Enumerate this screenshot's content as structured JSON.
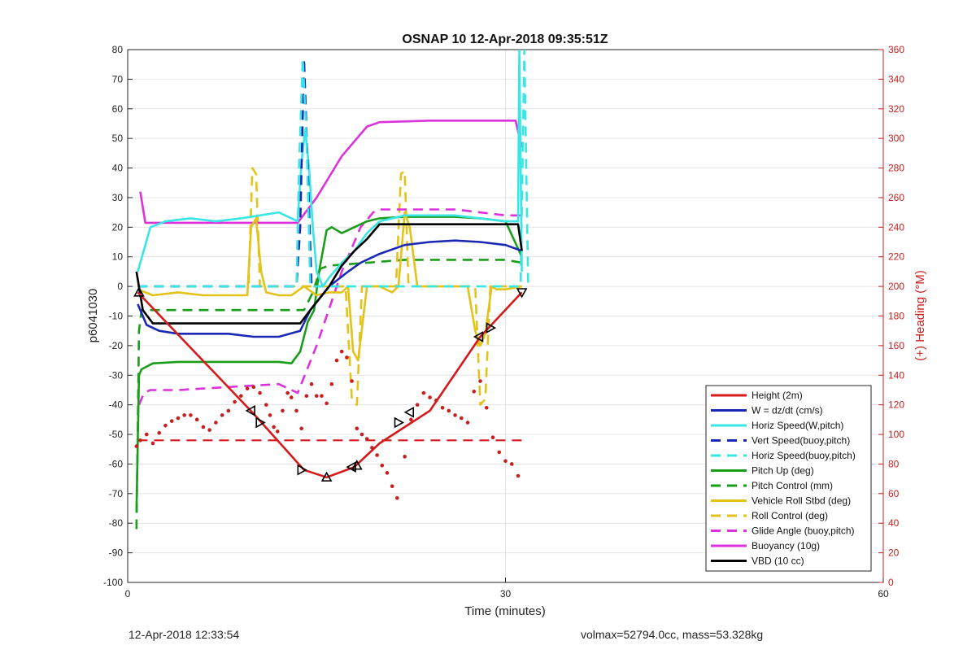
{
  "chart_data": {
    "type": "line",
    "title": "OSNAP 10 12-Apr-2018 09:35:51Z",
    "xlabel": "Time (minutes)",
    "ylabel": "p6041030",
    "y2label": "(+) Heading (°M)",
    "xlim": [
      0,
      60
    ],
    "ylim": [
      -100,
      80
    ],
    "y2lim": [
      0,
      360
    ],
    "xticks": [
      0,
      30,
      60
    ],
    "yticks": [
      -100,
      -90,
      -80,
      -70,
      -60,
      -50,
      -40,
      -30,
      -20,
      -10,
      0,
      10,
      20,
      30,
      40,
      50,
      60,
      70,
      80
    ],
    "y2ticks": [
      0,
      20,
      40,
      60,
      80,
      100,
      120,
      140,
      160,
      180,
      200,
      220,
      240,
      260,
      280,
      300,
      320,
      340,
      360
    ],
    "grid": true,
    "legend_position": "bottom-right",
    "colors": {
      "red": "#d7191c",
      "blue": "#1a28b4",
      "cyan": "#39e6e6",
      "green": "#1a9e1a",
      "yellow": "#e3c21a",
      "magenta": "#dc32dc",
      "black": "#000000",
      "right_axis": "#c81e1e"
    },
    "series": [
      {
        "name": "Height (2m)",
        "color": "#d7191c",
        "dash": false,
        "x": [
          0.8,
          10,
          14,
          15.8,
          18,
          20,
          24,
          28,
          31.3
        ],
        "y": [
          -2,
          -43,
          -62,
          -64.5,
          -61,
          -53,
          -42,
          -17,
          -2
        ]
      },
      {
        "name": "W = dz/dt (cm/s)",
        "color": "#1a28b4",
        "dash": false,
        "x": [
          0.8,
          1.5,
          2.5,
          4,
          6,
          8,
          10,
          12,
          13.7,
          14.5,
          16,
          17.5,
          18.5,
          20,
          22,
          24,
          26,
          28,
          30,
          31.3
        ],
        "y": [
          -6,
          -13,
          -15,
          -16,
          -16,
          -16,
          -17,
          -17,
          -15,
          -8,
          0,
          5,
          8,
          11,
          14,
          15,
          15.5,
          15,
          14,
          12
        ]
      },
      {
        "name": "Horiz Speed(W,pitch)",
        "color": "#39e6e6",
        "dash": false,
        "x": [
          0.8,
          1.8,
          3,
          5,
          7,
          9,
          10.5,
          12,
          13.5,
          13.8,
          14.1,
          14.4,
          14.7,
          15,
          15.5,
          16,
          17,
          18,
          19,
          20,
          22,
          24,
          26,
          28,
          30,
          31.0,
          31.1,
          31.3
        ],
        "y": [
          5,
          20,
          22,
          23,
          22,
          23,
          24,
          25,
          22,
          42,
          53,
          40,
          20,
          5,
          0,
          3,
          8,
          12,
          18,
          22,
          24,
          24,
          24,
          23,
          22,
          22,
          80,
          5
        ]
      },
      {
        "name": "Vert Speed(buoy,pitch)",
        "color": "#1a28b4",
        "dash": true,
        "x": [
          0.8,
          13.4,
          13.7,
          14.0,
          14.3,
          14.6,
          15
        ],
        "y": [
          0,
          0,
          20,
          77,
          40,
          0,
          0
        ]
      },
      {
        "name": "Horiz Speed(buoy,pitch)",
        "color": "#39e6e6",
        "dash": true,
        "x": [
          0.8,
          13.4,
          13.6,
          13.9,
          14.2,
          14.5,
          15,
          28,
          31.2,
          31.5,
          31.8
        ],
        "y": [
          0,
          0,
          40,
          77,
          50,
          0,
          0,
          0,
          0,
          80,
          0
        ]
      },
      {
        "name": "Pitch Up (deg)",
        "color": "#1a9e1a",
        "dash": false,
        "x": [
          0.7,
          0.9,
          1.1,
          2,
          4,
          6,
          8,
          10,
          12,
          13,
          13.7,
          14.3,
          14.8,
          15.2,
          15.8,
          16.2,
          17,
          18,
          19,
          20,
          22,
          24,
          26,
          28,
          30,
          31.3
        ],
        "y": [
          -76,
          -30,
          -28,
          -26,
          -25.5,
          -25.5,
          -25.5,
          -25.5,
          -25.5,
          -26,
          -22,
          -12,
          -8,
          5,
          19,
          20,
          18,
          20,
          22,
          23,
          23.5,
          23.5,
          23.5,
          23,
          22,
          10
        ]
      },
      {
        "name": "Pitch Control (mm)",
        "color": "#1a9e1a",
        "dash": true,
        "x": [
          0.7,
          0.9,
          1.1,
          2,
          13.3,
          14,
          14.7,
          15.3,
          16,
          22,
          30,
          31.3
        ],
        "y": [
          -82,
          -15,
          -8,
          -8,
          -8,
          -8,
          -2,
          6,
          7,
          9,
          9,
          8
        ]
      },
      {
        "name": "Vehicle Roll Stbd (deg)",
        "color": "#e3c21a",
        "dash": false,
        "x": [
          0.8,
          2,
          4,
          6,
          8,
          9.5,
          9.8,
          10.2,
          10.6,
          11,
          12,
          13,
          14,
          15,
          16,
          17,
          17.5,
          17.9,
          18.3,
          19,
          20,
          21,
          21.5,
          22,
          22.4,
          23,
          24,
          26,
          27,
          27.6,
          28,
          28.4,
          28.9,
          29.3,
          30,
          31.3
        ],
        "y": [
          -1,
          -3,
          -2,
          -3,
          -3,
          -3,
          20,
          23,
          5,
          -2,
          -3,
          -3,
          0,
          -3,
          -2,
          -2,
          0,
          -22,
          -25,
          0,
          0,
          -2,
          0,
          25,
          20,
          0,
          0,
          0,
          0,
          -15,
          -20,
          -16,
          0,
          -1,
          -1,
          0
        ]
      },
      {
        "name": "Roll Control (deg)",
        "color": "#e3c21a",
        "dash": true,
        "x": [
          0.8,
          9.6,
          9.9,
          10.2,
          10.5,
          17.3,
          17.8,
          18.2,
          18.6,
          21.3,
          21.7,
          22.0,
          22.3,
          27.6,
          28.0,
          28.4,
          28.8,
          31.3
        ],
        "y": [
          0,
          0,
          40,
          38,
          0,
          0,
          -38,
          -40,
          0,
          0,
          38,
          39,
          0,
          0,
          -40,
          -38,
          0,
          0
        ]
      },
      {
        "name": "Glide Angle (buoy,pitch)",
        "color": "#dc32dc",
        "dash": true,
        "x": [
          0.9,
          1.3,
          1.8,
          4,
          8,
          12,
          13.5,
          15,
          17,
          18.5,
          19.5,
          20,
          22,
          24,
          26,
          28,
          30,
          31.2
        ],
        "y": [
          -40,
          -36,
          -35,
          -35,
          -34,
          -33,
          -36,
          -20,
          5,
          20,
          25,
          26,
          26,
          26,
          26,
          25,
          24,
          24
        ]
      },
      {
        "name": "Buoyancy (10g)",
        "color": "#dc32dc",
        "dash": false,
        "x": [
          1.0,
          1.4,
          4,
          8,
          13.5,
          15,
          16,
          17,
          18,
          19,
          20,
          24,
          30,
          30.8,
          31.3
        ],
        "y": [
          32,
          21.5,
          21.5,
          21.5,
          21.5,
          30,
          37,
          44,
          49,
          54,
          55.5,
          56,
          56,
          56,
          47
        ]
      },
      {
        "name": "VBD (10 cc)",
        "color": "#000000",
        "dash": false,
        "x": [
          0.7,
          1.2,
          2,
          13.7,
          14.5,
          16,
          17,
          18,
          19,
          20,
          30,
          31.0,
          31.3
        ],
        "y": [
          5,
          -8,
          -12.5,
          -12.5,
          -8,
          0,
          7,
          12,
          16,
          21,
          21,
          21,
          12
        ]
      }
    ],
    "reference_line": {
      "color": "#d7191c",
      "dash": true,
      "y": -52,
      "xlim": [
        0.8,
        31.3
      ]
    },
    "heading_points": {
      "color": "#c81e1e",
      "axis": "right",
      "x": [
        0.7,
        1.0,
        1.5,
        2,
        2.5,
        3,
        3.5,
        4,
        4.5,
        5,
        5.5,
        6,
        6.5,
        7,
        7.5,
        8,
        8.5,
        9,
        9.5,
        10,
        10.5,
        11,
        11.3,
        11.6,
        11.9,
        12.3,
        12.7,
        13,
        13.4,
        13.8,
        14.2,
        14.6,
        15,
        15.4,
        15.8,
        16.2,
        16.6,
        17,
        17.4,
        17.8,
        18.2,
        18.6,
        19,
        19.4,
        19.8,
        20.2,
        20.6,
        21,
        21.4,
        22,
        22.5,
        23,
        23.5,
        24,
        24.5,
        25,
        25.5,
        26,
        26.5,
        27,
        27.5,
        28,
        28.5,
        29,
        29.5,
        30,
        30.5,
        31
      ],
      "y": [
        92,
        96,
        100,
        94,
        101,
        106,
        109,
        111,
        113,
        113,
        110,
        105,
        103,
        108,
        113,
        116,
        122,
        126,
        131,
        132,
        128,
        120,
        113,
        105,
        102,
        116,
        128,
        125,
        116,
        104,
        126,
        134,
        126,
        126,
        121,
        134,
        150,
        156,
        152,
        136,
        104,
        100,
        97,
        91,
        86,
        79,
        74,
        65,
        57,
        85,
        110,
        120,
        128,
        125,
        123,
        118,
        116,
        113,
        111,
        108,
        129,
        136,
        118,
        98,
        88,
        82,
        80,
        72
      ]
    },
    "markers": {
      "color": "#000000",
      "x": [
        0.9,
        9.8,
        10.5,
        13.8,
        15.8,
        17.8,
        18.2,
        21.5,
        22.4,
        27.9,
        28.8,
        31.3
      ],
      "y": [
        -2,
        -42,
        -46,
        -62,
        -64.5,
        -61,
        -60.5,
        -46,
        -42.5,
        -17,
        -14,
        -2
      ],
      "directions": [
        "up",
        "left",
        "right",
        "right",
        "up",
        "left",
        "up",
        "right",
        "left",
        "left",
        "right",
        "down"
      ]
    }
  },
  "footer": {
    "left": "12-Apr-2018 12:33:54",
    "right": "volmax=52794.0cc, mass=53.328kg"
  }
}
